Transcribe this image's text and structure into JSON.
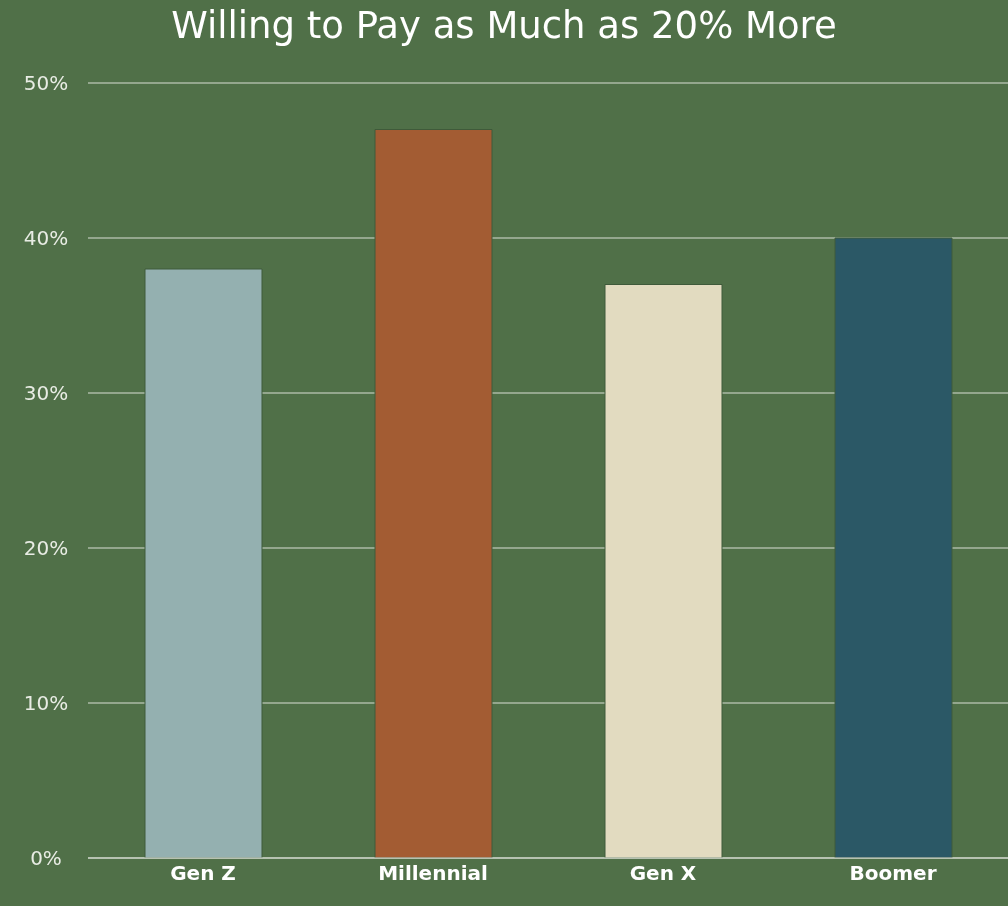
{
  "chart_data": {
    "type": "bar",
    "title": "Willing to Pay as Much as 20% More",
    "categories": [
      "Gen Z",
      "Millennial",
      "Gen X",
      "Boomer"
    ],
    "values": [
      38,
      47,
      37,
      40
    ],
    "colors": [
      "#94b0b0",
      "#a35c33",
      "#e2dbc0",
      "#2b5866"
    ],
    "ylim": [
      0,
      50
    ],
    "yticks": [
      {
        "value": 0,
        "label": "0%"
      },
      {
        "value": 10,
        "label": "10%"
      },
      {
        "value": 20,
        "label": "20%"
      },
      {
        "value": 30,
        "label": "30%"
      },
      {
        "value": 40,
        "label": "40%"
      },
      {
        "value": 50,
        "label": "50%"
      }
    ],
    "grid": "y"
  }
}
